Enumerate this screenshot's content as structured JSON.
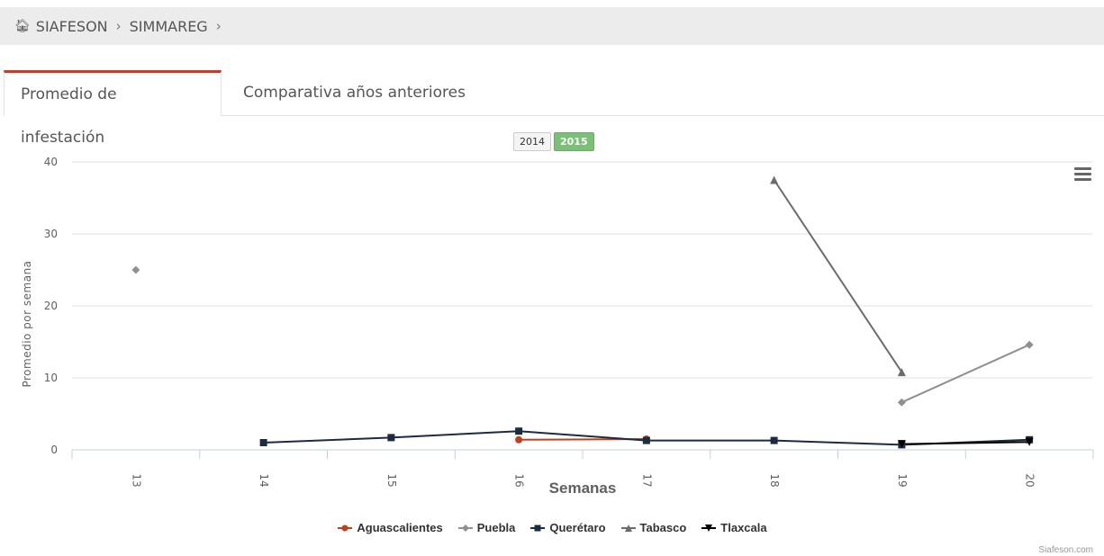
{
  "breadcrumb": {
    "items": [
      "SIAFESON",
      "SIMMAREG"
    ],
    "sep": "›"
  },
  "tabs": [
    {
      "label": "Promedio de infestación"
    },
    {
      "label": "Comparativa años anteriores"
    }
  ],
  "year_buttons": [
    "2014",
    "2015"
  ],
  "credit": "Siafeson.com",
  "chart_data": {
    "type": "line",
    "title": "",
    "xlabel": "Semanas",
    "ylabel": "Promedio por semana",
    "categories": [
      "13",
      "14",
      "15",
      "16",
      "17",
      "18",
      "19",
      "20"
    ],
    "yticks": [
      "0",
      "10",
      "20",
      "30",
      "40"
    ],
    "ylim": [
      0,
      40
    ],
    "grid": true,
    "legend_position": "bottom",
    "series": [
      {
        "name": "Aguascalientes",
        "color": "#c1401c",
        "marker": "circle",
        "values": [
          null,
          null,
          null,
          1.4,
          1.5,
          null,
          null,
          null
        ]
      },
      {
        "name": "Puebla",
        "color": "#909090",
        "marker": "diamond",
        "values": [
          25,
          null,
          null,
          null,
          null,
          null,
          6.6,
          14.6
        ]
      },
      {
        "name": "Querétaro",
        "color": "#1c2c40",
        "marker": "square",
        "values": [
          null,
          1.0,
          1.7,
          2.6,
          1.3,
          1.3,
          0.7,
          1.4
        ]
      },
      {
        "name": "Tabasco",
        "color": "#6c6c6c",
        "marker": "triangle",
        "values": [
          null,
          null,
          null,
          null,
          null,
          37.5,
          10.8,
          null
        ]
      },
      {
        "name": "Tlaxcala",
        "color": "#000000",
        "marker": "triangle-down",
        "values": [
          null,
          null,
          null,
          null,
          null,
          null,
          0.8,
          1.1
        ]
      }
    ]
  }
}
